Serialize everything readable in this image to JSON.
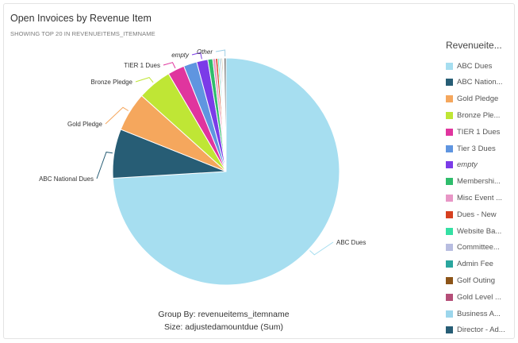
{
  "title": "Open Invoices by Revenue Item",
  "subtitle": "SHOWING TOP 20 IN REVENUEITEMS_ITEMNAME",
  "legend_title": "Revenueite...",
  "group_by": "Group By: revenueitems_itemname",
  "size_by": "Size: adjustedamountdue (Sum)",
  "chart_data": {
    "type": "pie",
    "legend_placement": "right",
    "slices": [
      {
        "label": "ABC Dues",
        "value": 74.2,
        "color": "#a6def0"
      },
      {
        "label": "ABC National Dues",
        "value": 7.0,
        "color": "#275d75"
      },
      {
        "label": "Gold Pledge",
        "value": 5.6,
        "color": "#f5a75d"
      },
      {
        "label": "Bronze Pledge",
        "value": 4.9,
        "color": "#bfe635"
      },
      {
        "label": "TIER 1 Dues",
        "value": 2.4,
        "color": "#e0359e"
      },
      {
        "label": "Tier 3 Dues",
        "value": 1.9,
        "color": "#5f95e0"
      },
      {
        "label": "empty",
        "value": 1.6,
        "color": "#7b3be8"
      },
      {
        "label": "Membership",
        "value": 0.7,
        "color": "#2fbd6c"
      },
      {
        "label": "Misc Event",
        "value": 0.4,
        "color": "#e896c6"
      },
      {
        "label": "Dues - New",
        "value": 0.3,
        "color": "#d64020"
      },
      {
        "label": "Website Banner",
        "value": 0.2,
        "color": "#35e0a4"
      },
      {
        "label": "Committee",
        "value": 0.2,
        "color": "#b8bde0"
      },
      {
        "label": "Admin Fee",
        "value": 0.15,
        "color": "#2aa69e"
      },
      {
        "label": "Golf Outing",
        "value": 0.15,
        "color": "#8c5418"
      },
      {
        "label": "Gold Level",
        "value": 0.1,
        "color": "#b54e78"
      },
      {
        "label": "Business A",
        "value": 0.1,
        "color": "#9cd6ec"
      },
      {
        "label": "Other",
        "value": 0.29,
        "color": "#7a7a7a"
      }
    ],
    "slice_labels": [
      "ABC Dues",
      "ABC National Dues",
      "Gold Pledge",
      "Bronze Pledge",
      "TIER 1 Dues",
      "empty",
      "Other"
    ]
  },
  "legend": [
    {
      "label": "ABC Dues",
      "color": "#a6def0",
      "italic": false
    },
    {
      "label": "ABC Nation...",
      "color": "#275d75",
      "italic": false
    },
    {
      "label": "Gold Pledge",
      "color": "#f5a75d",
      "italic": false
    },
    {
      "label": "Bronze Ple...",
      "color": "#bfe635",
      "italic": false
    },
    {
      "label": "TIER 1 Dues",
      "color": "#e0359e",
      "italic": false
    },
    {
      "label": "Tier 3 Dues",
      "color": "#5f95e0",
      "italic": false
    },
    {
      "label": "empty",
      "color": "#7b3be8",
      "italic": true
    },
    {
      "label": "Membershi...",
      "color": "#2fbd6c",
      "italic": false
    },
    {
      "label": "Misc Event ...",
      "color": "#e896c6",
      "italic": false
    },
    {
      "label": "Dues - New",
      "color": "#d64020",
      "italic": false
    },
    {
      "label": "Website Ba...",
      "color": "#35e0a4",
      "italic": false
    },
    {
      "label": "Committee...",
      "color": "#b8bde0",
      "italic": false
    },
    {
      "label": "Admin Fee",
      "color": "#2aa69e",
      "italic": false
    },
    {
      "label": "Golf Outing",
      "color": "#8c5418",
      "italic": false
    },
    {
      "label": "Gold Level ...",
      "color": "#b54e78",
      "italic": false
    },
    {
      "label": "Business A...",
      "color": "#9cd6ec",
      "italic": false
    },
    {
      "label": "Director - Ad...",
      "color": "#275d75",
      "italic": false
    }
  ]
}
